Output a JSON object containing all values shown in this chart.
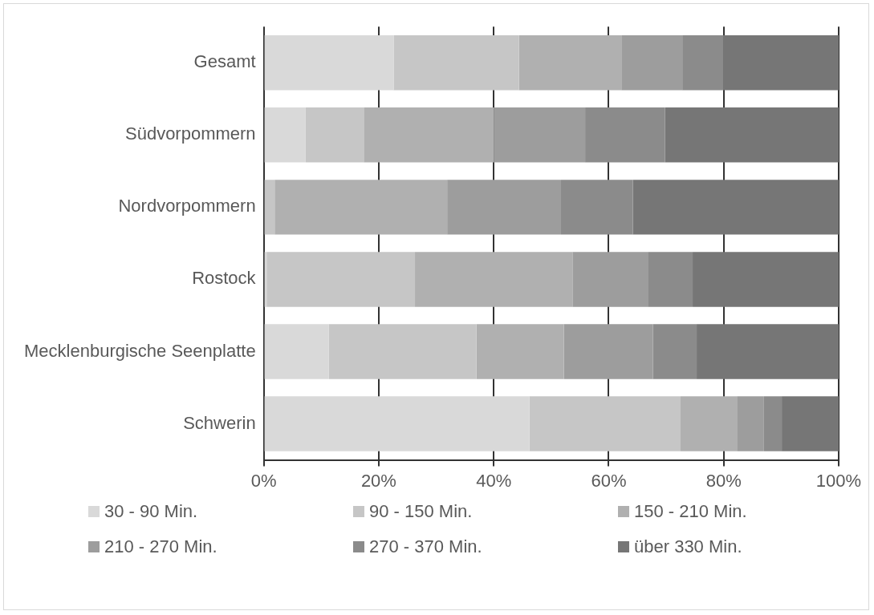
{
  "chart_data": {
    "type": "bar",
    "orientation": "horizontal",
    "stacked": true,
    "categories": [
      "Gesamt",
      "Südvorpommern",
      "Nordvorpommern",
      "Rostock",
      "Mecklenburgische Seenplatte",
      "Schwerin"
    ],
    "series": [
      {
        "name": "30 - 90 Min.",
        "color": "#d9d9d9",
        "values": [
          22.6,
          7.3,
          0,
          0.5,
          11.3,
          46.2
        ]
      },
      {
        "name": "90 - 150 Min.",
        "color": "#c6c6c6",
        "values": [
          21.8,
          10.1,
          1.9,
          25.8,
          25.7,
          26.3
        ]
      },
      {
        "name": "150 - 210 Min.",
        "color": "#b0b0b0",
        "values": [
          17.8,
          22.6,
          30.0,
          27.4,
          15.2,
          9.8
        ]
      },
      {
        "name": "210 - 270 Min.",
        "color": "#9d9d9d",
        "values": [
          10.6,
          15.9,
          19.8,
          13.1,
          15.5,
          4.7
        ]
      },
      {
        "name": "270 - 370 Min.",
        "color": "#8b8b8b",
        "values": [
          7.1,
          13.9,
          12.5,
          7.8,
          7.6,
          3.1
        ]
      },
      {
        "name": "über 330 Min.",
        "color": "#767676",
        "values": [
          20.1,
          30.2,
          35.8,
          25.4,
          24.7,
          9.9
        ]
      }
    ],
    "xlim": [
      0,
      100
    ],
    "xticks": [
      {
        "value": 0,
        "label": "0%"
      },
      {
        "value": 20,
        "label": "20%"
      },
      {
        "value": 40,
        "label": "40%"
      },
      {
        "value": 60,
        "label": "60%"
      },
      {
        "value": 80,
        "label": "80%"
      },
      {
        "value": 100,
        "label": "100%"
      }
    ],
    "grid": "x",
    "legend": "bottom"
  }
}
